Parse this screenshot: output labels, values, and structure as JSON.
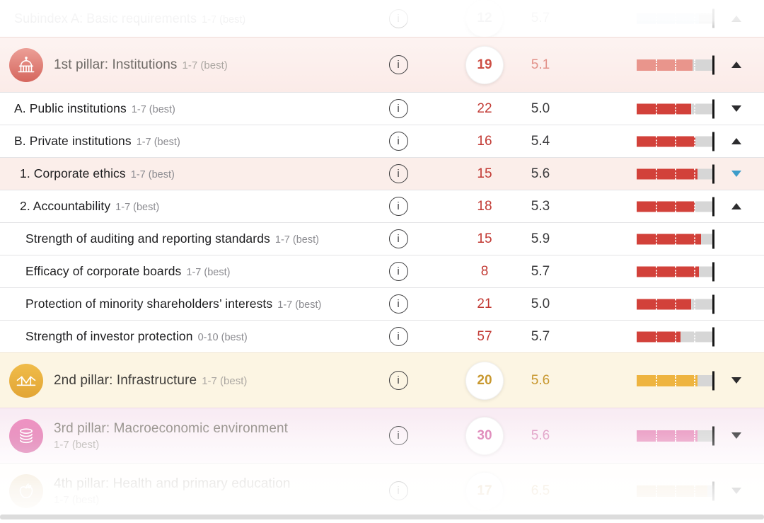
{
  "table": {
    "rows": [
      {
        "id": "subindex-a",
        "type": "subindex",
        "label": "Subindex A: Basic requirements",
        "scale": "1-7 (best)",
        "scale_max": 7,
        "rank": "12",
        "score": "5.7",
        "theme": "subindex",
        "arrow": "up",
        "interactable": true
      },
      {
        "id": "pillar-1-institutions",
        "type": "pillar",
        "icon": "institutions-icon",
        "label": "1st pillar: Institutions",
        "scale": "1-7 (best)",
        "scale_max": 7,
        "rank": "19",
        "score": "5.1",
        "theme": "pillar1",
        "arrow": "up",
        "bg": "bg-p1",
        "icon_class": "pi-p1",
        "interactable": true
      },
      {
        "id": "public-institutions",
        "type": "sub1",
        "label": "A. Public institutions",
        "scale": "1-7 (best)",
        "scale_max": 7,
        "rank": "22",
        "score": "5.0",
        "theme": "red",
        "arrow": "down",
        "interactable": true
      },
      {
        "id": "private-institutions",
        "type": "sub1",
        "label": "B. Private institutions",
        "scale": "1-7 (best)",
        "scale_max": 7,
        "rank": "16",
        "score": "5.4",
        "theme": "red",
        "arrow": "up",
        "interactable": true
      },
      {
        "id": "corporate-ethics",
        "type": "sub2",
        "label": "1. Corporate ethics",
        "scale": "1-7 (best)",
        "scale_max": 7,
        "rank": "15",
        "score": "5.6",
        "theme": "red",
        "arrow": "down-blue",
        "bg": "bg-ethics",
        "interactable": true
      },
      {
        "id": "accountability",
        "type": "sub2",
        "label": "2. Accountability",
        "scale": "1-7 (best)",
        "scale_max": 7,
        "rank": "18",
        "score": "5.3",
        "theme": "red",
        "arrow": "up",
        "interactable": true
      },
      {
        "id": "auditing-standards",
        "type": "leaf",
        "label": "Strength of auditing and reporting standards",
        "scale": "1-7 (best)",
        "scale_max": 7,
        "rank": "15",
        "score": "5.9",
        "theme": "red",
        "arrow": null,
        "interactable": false
      },
      {
        "id": "corporate-boards",
        "type": "leaf",
        "label": "Efficacy of corporate boards",
        "scale": "1-7 (best)",
        "scale_max": 7,
        "rank": "8",
        "score": "5.7",
        "theme": "red",
        "arrow": null,
        "interactable": false
      },
      {
        "id": "minority-shareholders",
        "type": "leaf",
        "label": "Protection of minority shareholders’ interests",
        "scale": "1-7 (best)",
        "scale_max": 7,
        "rank": "21",
        "score": "5.0",
        "theme": "red",
        "arrow": null,
        "interactable": false
      },
      {
        "id": "investor-protection",
        "type": "leaf",
        "label": "Strength of investor protection",
        "scale": "0-10 (best)",
        "scale_max": 10,
        "rank": "57",
        "score": "5.7",
        "theme": "red",
        "arrow": null,
        "interactable": false
      },
      {
        "id": "pillar-2-infrastructure",
        "type": "pillar",
        "icon": "infrastructure-icon",
        "label": "2nd pillar: Infrastructure",
        "scale": "1-7 (best)",
        "scale_max": 7,
        "rank": "20",
        "score": "5.6",
        "theme": "pillar2",
        "arrow": "down",
        "bg": "bg-p2",
        "icon_class": "pi-p2",
        "interactable": true
      },
      {
        "id": "pillar-3-macroeconomic",
        "type": "pillar",
        "icon": "macroeconomic-icon",
        "label": "3rd pillar: Macroeconomic environment",
        "scale": "1-7 (best)",
        "scale_max": 7,
        "rank": "30",
        "score": "5.6",
        "theme": "pillar3",
        "arrow": "down",
        "bg": "bg-p3",
        "icon_class": "pi-p3",
        "wrap": true,
        "interactable": true
      },
      {
        "id": "pillar-4-health-education",
        "type": "pillar",
        "icon": "health-icon",
        "label": "4th pillar: Health and primary education",
        "scale": "1-7 (best)",
        "scale_max": 7,
        "rank": "17",
        "score": "6.5",
        "theme": "pillar4",
        "arrow": "down",
        "bg": "bg-p4",
        "icon_class": "pi-p4",
        "wrap": true,
        "interactable": true
      }
    ],
    "info_glyph": "i",
    "themes": {
      "red": {
        "bar": "#d2413a",
        "rank": "#c23a34",
        "score": "#3a3a3c",
        "title": "#1d1d1f"
      },
      "pillar1": {
        "bar": "#e9958c",
        "rank": "#cd4e44",
        "score": "#e2928a",
        "title": "#6e6a66"
      },
      "pillar2": {
        "bar": "#eeb440",
        "rank": "#c8982f",
        "score": "#c8982f",
        "title": "#3f3d3a"
      },
      "pillar3": {
        "bar": "#e891bd",
        "rank": "#d870ab",
        "score": "#db90bc",
        "title": "#8c8781"
      },
      "pillar4": {
        "bar": "#e6cda6",
        "rank": "#cfa86a",
        "score": "#cfa86a",
        "title": "#9a948c"
      },
      "subindex": {
        "bar": "#dbe7f2",
        "rank": "#b0b0b4",
        "score": "#b0b0b4",
        "title": "#8e8e93"
      }
    }
  }
}
